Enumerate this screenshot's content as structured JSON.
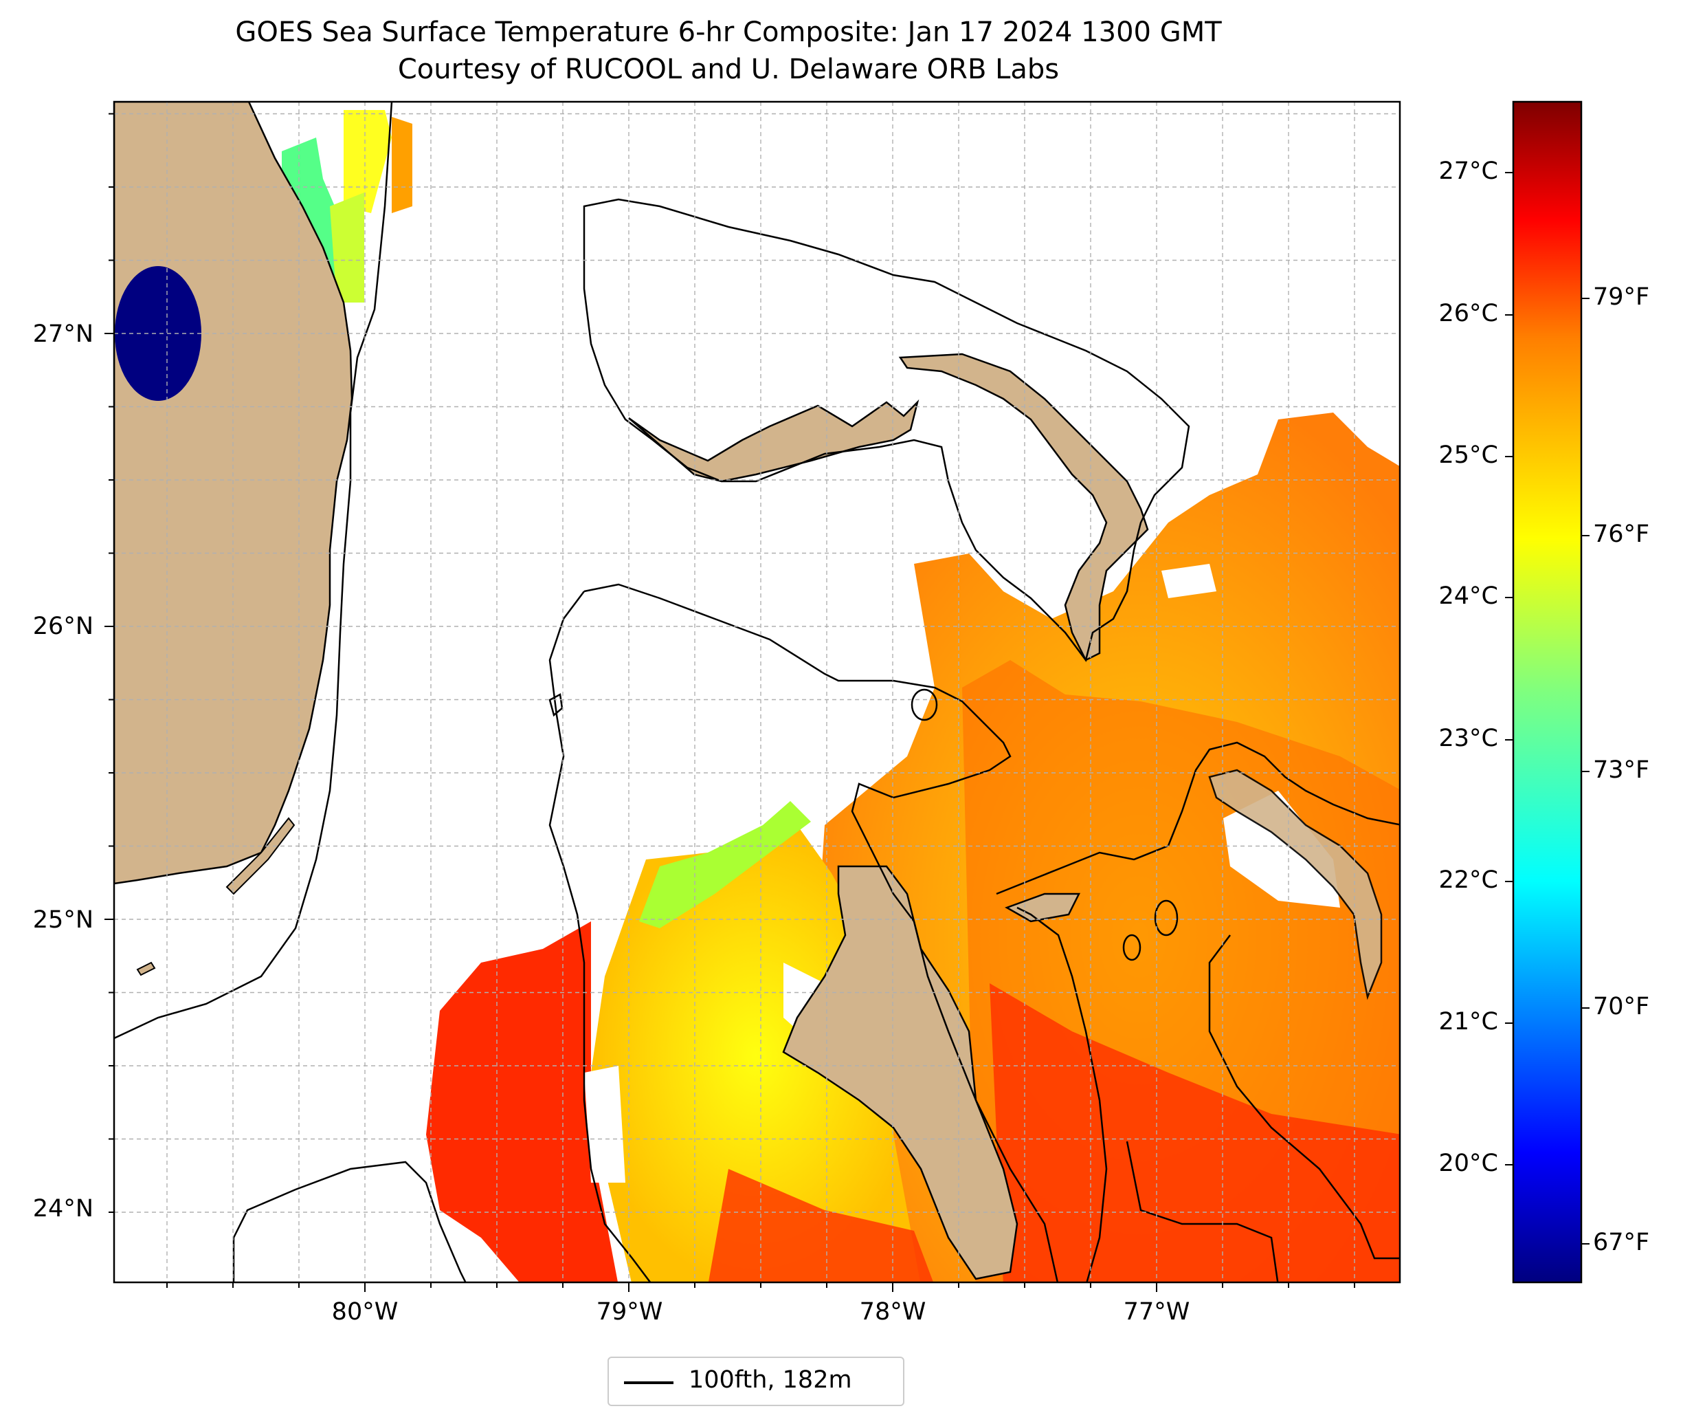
{
  "title": {
    "line1": "GOES Sea Surface Temperature 6-hr Composite: Jan 17 2024 1300 GMT",
    "line2": "Courtesy of RUCOOL and U. Delaware ORB Labs"
  },
  "map": {
    "lat_labels": [
      "27°N",
      "26°N",
      "25°N",
      "24°N"
    ],
    "lon_labels": [
      "80°W",
      "79°W",
      "78°W",
      "77°W"
    ],
    "extent": {
      "lon_min": -80.95,
      "lon_max": -76.1,
      "lat_min": 23.75,
      "lat_max": 27.8
    },
    "land_color": "#d2b48c",
    "gridlines": "dashed gray"
  },
  "colorbar": {
    "celsius_labels": [
      "27°C",
      "26°C",
      "25°C",
      "24°C",
      "23°C",
      "22°C",
      "21°C",
      "20°C"
    ],
    "fahrenheit_labels": [
      "79°F",
      "76°F",
      "73°F",
      "70°F",
      "67°F"
    ],
    "colormap": "jet",
    "colors": [
      "#00007f",
      "#0000ff",
      "#007fff",
      "#00ffff",
      "#7fff7f",
      "#ffff00",
      "#ff7f00",
      "#ff0000",
      "#7f0000"
    ]
  },
  "legend": {
    "label": "100fth, 182m"
  }
}
